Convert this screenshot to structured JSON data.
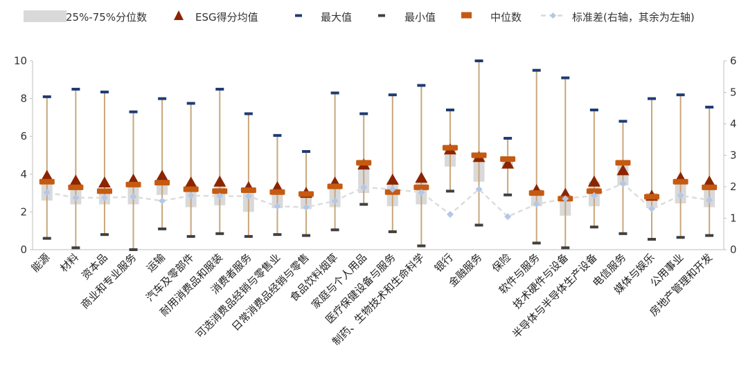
{
  "chart_data": {
    "type": "boxplot",
    "legend_position": "top",
    "legend": {
      "iqr": "25%-75%分位数",
      "mean": "ESG得分均值",
      "max": "最大值",
      "min": "最小值",
      "median": "中位数",
      "std": "标准差(右轴，其余为左轴)"
    },
    "colors": {
      "iqr": "#d9d9d9",
      "mean": "#8b2500",
      "max": "#1f3b73",
      "min": "#404040",
      "median": "#c55a11",
      "whisker": "#c9a67a",
      "std": "#b4c7e7"
    },
    "y_left": {
      "min": 0,
      "max": 10,
      "ticks": [
        "0",
        "2",
        "4",
        "6",
        "8",
        "10"
      ]
    },
    "y_right": {
      "min": 0,
      "max": 6,
      "ticks": [
        "0",
        "1",
        "2",
        "3",
        "4",
        "5",
        "6"
      ]
    },
    "grid": false,
    "categories": [
      "能源",
      "材料",
      "资本品",
      "商业和专业服务",
      "运输",
      "汽车及零部件",
      "耐用消费品和服装",
      "消费者服务",
      "可选消费品经销与零售业",
      "日常消费品经销与零售",
      "食品饮料烟草",
      "家庭与个人用品",
      "医疗保健设备与服务",
      "制药、生物技术和生命科学",
      "银行",
      "金融服务",
      "保险",
      "软件与服务",
      "技术硬件与设备",
      "半导体与半导体生产设备",
      "电信服务",
      "媒体与娱乐",
      "公用事业",
      "房地产管理和开发"
    ],
    "series": [
      {
        "name": "最大值",
        "values": [
          8.1,
          8.5,
          8.35,
          7.3,
          8.0,
          7.75,
          8.5,
          7.2,
          6.05,
          5.2,
          8.3,
          7.2,
          8.2,
          8.7,
          7.4,
          10.0,
          5.9,
          9.5,
          9.1,
          7.4,
          6.8,
          8.0,
          8.2,
          7.55
        ]
      },
      {
        "name": "Q3",
        "values": [
          3.7,
          3.4,
          3.2,
          3.55,
          3.7,
          3.4,
          3.4,
          3.2,
          3.1,
          3.0,
          3.5,
          4.7,
          3.6,
          3.6,
          5.5,
          5.1,
          4.9,
          3.2,
          2.9,
          3.6,
          4.6,
          3.0,
          3.6,
          3.3
        ]
      },
      {
        "name": "中位数",
        "values": [
          3.6,
          3.3,
          3.1,
          3.45,
          3.55,
          3.2,
          3.1,
          3.15,
          3.05,
          2.95,
          3.35,
          4.6,
          3.05,
          3.3,
          5.4,
          5.0,
          4.8,
          3.0,
          2.7,
          3.1,
          4.6,
          2.8,
          3.6,
          3.3
        ]
      },
      {
        "name": "ESG得分均值",
        "values": [
          3.9,
          3.65,
          3.55,
          3.7,
          3.9,
          3.55,
          3.6,
          3.3,
          3.3,
          3.0,
          3.55,
          4.5,
          3.7,
          3.8,
          5.3,
          4.9,
          4.55,
          3.15,
          2.95,
          3.6,
          4.2,
          2.85,
          3.8,
          3.6
        ]
      },
      {
        "name": "Q1",
        "values": [
          2.6,
          2.4,
          2.4,
          2.4,
          2.9,
          2.25,
          2.35,
          2.0,
          2.2,
          2.15,
          2.25,
          3.0,
          2.3,
          2.4,
          4.4,
          3.6,
          4.4,
          2.3,
          1.8,
          2.3,
          3.4,
          2.2,
          2.45,
          2.25
        ]
      },
      {
        "name": "最小值",
        "values": [
          0.6,
          0.1,
          0.8,
          0.0,
          1.1,
          0.7,
          0.85,
          0.7,
          0.8,
          0.75,
          1.05,
          2.4,
          0.95,
          0.2,
          3.1,
          1.3,
          2.9,
          0.35,
          0.1,
          1.2,
          0.85,
          0.55,
          0.65,
          0.75
        ]
      },
      {
        "name": "标准差",
        "axis": "right",
        "values": [
          1.82,
          1.65,
          1.65,
          1.68,
          1.55,
          1.72,
          1.7,
          1.7,
          1.38,
          1.35,
          1.55,
          1.98,
          1.92,
          1.82,
          1.12,
          1.92,
          1.05,
          1.45,
          1.62,
          1.72,
          2.1,
          1.3,
          1.72,
          1.58
        ]
      }
    ]
  }
}
